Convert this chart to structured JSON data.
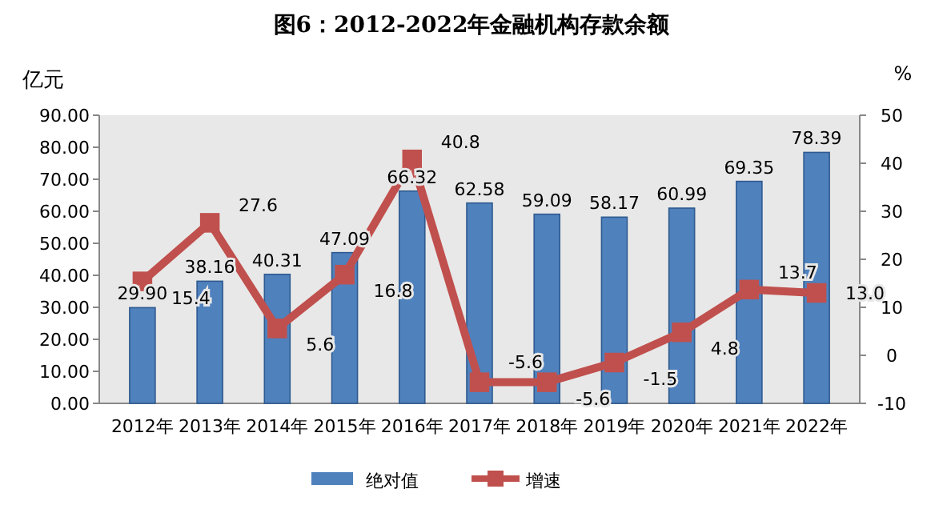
{
  "chart_data": {
    "type": "bar",
    "title": "图6：2012-2022年金融机构存款余额",
    "ylabel": "亿元",
    "y2label": "%",
    "categories": [
      "2012年",
      "2013年",
      "2014年",
      "2015年",
      "2016年",
      "2017年",
      "2018年",
      "2019年",
      "2020年",
      "2021年",
      "2022年"
    ],
    "series": [
      {
        "name": "绝对值",
        "type": "bar",
        "color": "#4f81bd",
        "values": [
          29.9,
          38.16,
          40.31,
          47.09,
          66.32,
          62.58,
          59.09,
          58.17,
          60.99,
          69.35,
          78.39
        ],
        "value_labels": [
          "29.90",
          "38.16",
          "40.31",
          "47.09",
          "66.32",
          "62.58",
          "59.09",
          "58.17",
          "60.99",
          "69.35",
          "78.39"
        ]
      },
      {
        "name": "增速",
        "type": "line",
        "axis": "y2",
        "color": "#c0504d",
        "marker": "square",
        "values": [
          15.4,
          27.6,
          5.6,
          16.8,
          40.8,
          -5.6,
          -5.6,
          -1.5,
          4.8,
          13.7,
          13.0
        ],
        "value_labels": [
          "15.4",
          "27.6",
          "5.6",
          "16.8",
          "40.8",
          "-5.6",
          "-5.6",
          "-1.5",
          "4.8",
          "13.7",
          "13.0"
        ]
      }
    ],
    "ylim": [
      0,
      90
    ],
    "yticks": [
      {
        "value": 0,
        "label": "0.00"
      },
      {
        "value": 10,
        "label": "10.00"
      },
      {
        "value": 20,
        "label": "20.00"
      },
      {
        "value": 30,
        "label": "30.00"
      },
      {
        "value": 40,
        "label": "40.00"
      },
      {
        "value": 50,
        "label": "50.00"
      },
      {
        "value": 60,
        "label": "60.00"
      },
      {
        "value": 70,
        "label": "70.00"
      },
      {
        "value": 80,
        "label": "80.00"
      },
      {
        "value": 90,
        "label": "90.00"
      }
    ],
    "y2lim": [
      -10,
      50
    ],
    "y2ticks": [
      -10,
      0,
      10,
      20,
      30,
      40,
      50
    ],
    "legend": "bottom",
    "grid": false
  }
}
